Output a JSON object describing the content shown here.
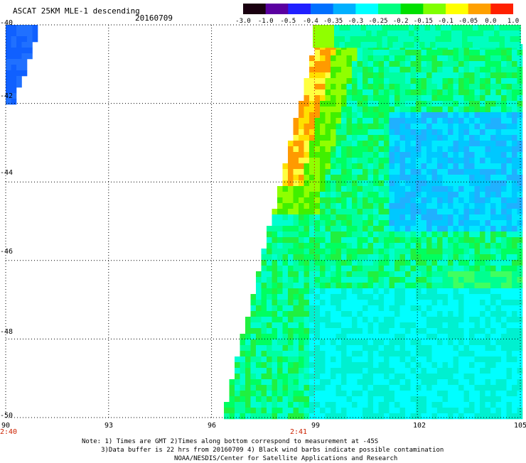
{
  "title": "ASCAT 25KM MLE-1 descending",
  "date": "20160709",
  "colorbar": {
    "ticks": [
      "-3.0",
      "-1.0",
      "-0.5",
      "-0.4",
      "-0.35",
      "-0.3",
      "-0.25",
      "-0.2",
      "-0.15",
      "-0.1",
      "-0.05",
      "0.0",
      "1.0"
    ],
    "colors": [
      "#1a0010",
      "#5a00a0",
      "#2020ff",
      "#0070ff",
      "#00b0ff",
      "#00ffff",
      "#00ff80",
      "#00e000",
      "#80ff00",
      "#ffff00",
      "#ffa000",
      "#ff2000"
    ]
  },
  "axes": {
    "lat_labels": [
      "-40",
      "-42",
      "-44",
      "-46",
      "-48",
      "-50"
    ],
    "lon_labels": [
      "90",
      "93",
      "96",
      "99",
      "102",
      "105"
    ],
    "lat_range": [
      -50,
      -40
    ],
    "lon_range": [
      90,
      105
    ]
  },
  "time_labels": [
    "2:40",
    "2:41"
  ],
  "notes": {
    "line1": "Note: 1) Times are GMT 2)Times along bottom correspond to measurement at -45S",
    "line2": "3)Data buffer is 22 hrs from 20160709 4) Black wind barbs indicate possible contamination",
    "line3": "NOAA/NESDIS/Center for Satellite Applications and Research"
  }
}
